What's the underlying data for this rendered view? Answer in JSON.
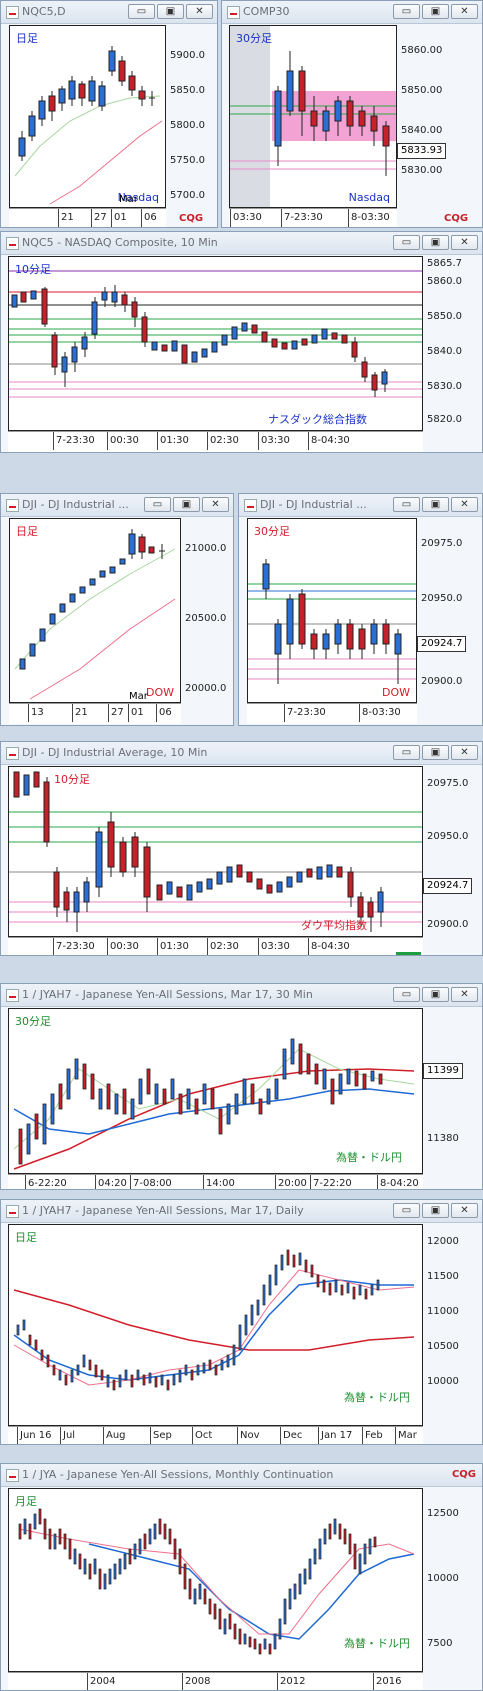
{
  "windows": [
    {
      "id": "w1",
      "title": "NQC5,D",
      "label_tl": "日足",
      "label_br": "Nasdaq",
      "lbl_color": "#1a31c8",
      "ticks": [
        "5900.0",
        "5850.0",
        "5800.0",
        "5750.0",
        "5700.0"
      ],
      "xticks": [
        "21",
        "27",
        "01",
        "06"
      ],
      "x_sub": "Mar",
      "box": "",
      "cqg": true
    },
    {
      "id": "w2",
      "title": "COMP30",
      "label_tl": "30分足",
      "label_br": "Nasdaq",
      "lbl_color": "#1a31c8",
      "ticks": [
        "5860.00",
        "5850.00",
        "5840.00",
        "5830.00"
      ],
      "xticks": [
        "03:30",
        "7-23:30",
        "8-03:30"
      ],
      "box": "5833.93",
      "cqg": true
    },
    {
      "id": "w3",
      "title": "NQC5 - NASDAQ Composite, 10 Min",
      "label_tl": "10分足",
      "label_br": "ナスダック総合指数",
      "lbl_color": "#1a31c8",
      "ticks": [
        "5865.7",
        "5860.0",
        "5850.0",
        "5840.0",
        "5830.0",
        "5820.0"
      ],
      "xticks": [
        "7-23:30",
        "00:30",
        "01:30",
        "02:30",
        "03:30",
        "8-04:30"
      ],
      "box": ""
    },
    {
      "id": "w4",
      "title": "DJI - DJ Industrial ...",
      "label_tl": "日足",
      "label_br": "DOW",
      "lbl_color": "#d21e2a",
      "ticks": [
        "21000.0",
        "20500.0",
        "20000.0"
      ],
      "xticks": [
        "13",
        "21",
        "27",
        "01",
        "06"
      ],
      "x_sub": "Mar",
      "box": ""
    },
    {
      "id": "w5",
      "title": "DJI - DJ Industrial ...",
      "label_tl": "30分足",
      "label_br": "DOW",
      "lbl_color": "#d21e2a",
      "ticks": [
        "20975.0",
        "20950.0",
        "20924.7",
        "20900.0"
      ],
      "xticks": [
        "7-23:30",
        "8-03:30"
      ],
      "box": "20924.7"
    },
    {
      "id": "w6",
      "title": "DJI - DJ Industrial Average, 10 Min",
      "label_tl": "10分足",
      "label_br": "ダウ平均指数",
      "lbl_color": "#d21e2a",
      "ticks": [
        "20975.0",
        "20950.0",
        "20924.7",
        "20900.0"
      ],
      "xticks": [
        "7-23:30",
        "00:30",
        "01:30",
        "02:30",
        "03:30",
        "8-04:30"
      ],
      "box": "20924.7"
    },
    {
      "id": "w7",
      "title": "1 / JYAH7 - Japanese Yen-All Sessions, Mar 17, 30 Min",
      "label_tl": "30分足",
      "label_br": "為替・ドル円",
      "lbl_color": "#1e8e2e",
      "ticks": [
        "11399",
        "11380"
      ],
      "xticks": [
        "6-22:20",
        "04:20",
        "7-08:00",
        "14:00",
        "20:00",
        "7-22:20",
        "8-04:20"
      ],
      "box": "11399"
    },
    {
      "id": "w8",
      "title": "1 / JYAH7 - Japanese Yen-All Sessions, Mar 17, Daily",
      "label_tl": "日足",
      "label_br": "為替・ドル円",
      "lbl_color": "#1e8e2e",
      "ticks": [
        "12000",
        "11500",
        "11000",
        "10500",
        "10000"
      ],
      "xticks": [
        "Jun 16",
        "Jul",
        "Aug",
        "Sep",
        "Oct",
        "Nov",
        "Dec",
        "Jan 17",
        "Feb",
        "Mar"
      ],
      "box": ""
    },
    {
      "id": "w9",
      "title": "1 / JYA - Japanese Yen-All Sessions, Monthly Continuation",
      "label_tl": "月足",
      "label_br": "為替・ドル円",
      "lbl_color": "#1e8e2e",
      "ticks": [
        "12500",
        "10000",
        "7500"
      ],
      "xticks": [
        "2004",
        "2008",
        "2012",
        "2016"
      ],
      "box": ""
    }
  ],
  "buttons": {
    "minimize": "▭",
    "restore": "▣",
    "close": "✕"
  },
  "brand": {
    "text": "CQG",
    "mark": "▣▣"
  }
}
